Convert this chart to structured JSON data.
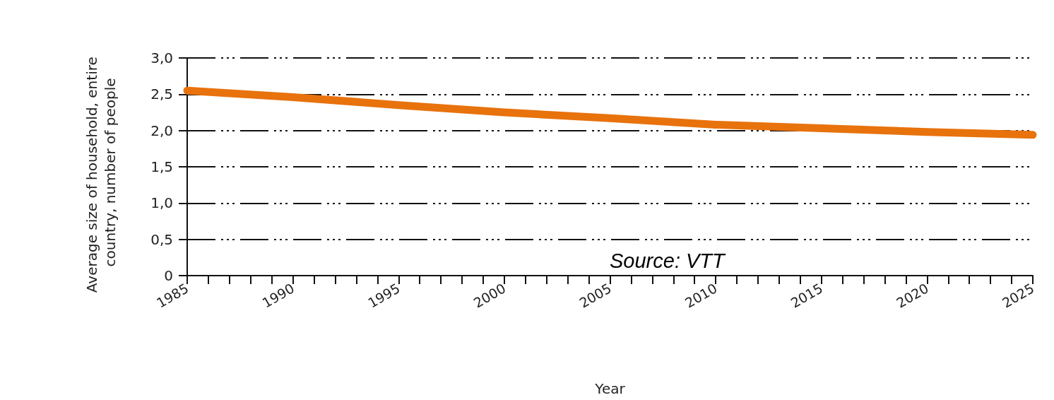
{
  "chart_data": {
    "type": "line",
    "xlabel": "Year",
    "ylabel": "Average size of household, entire country, number of people",
    "annotations": [
      "Source: VTT"
    ],
    "x": [
      1985,
      1990,
      1995,
      2000,
      2005,
      2010,
      2015,
      2020,
      2025
    ],
    "series": [
      {
        "color": "#e8720c",
        "values": [
          2.55,
          2.46,
          2.35,
          2.25,
          2.17,
          2.08,
          2.03,
          1.98,
          1.94
        ]
      }
    ],
    "xlim": [
      1985,
      2025
    ],
    "xticks": [
      1985,
      {
        "value": 1986,
        "label": null
      },
      {
        "value": 1987,
        "label": null
      },
      {
        "value": 1988,
        "label": null
      },
      {
        "value": 1989,
        "label": null
      },
      1990,
      {
        "value": 1991,
        "label": null
      },
      {
        "value": 1992,
        "label": null
      },
      {
        "value": 1993,
        "label": null
      },
      {
        "value": 1994,
        "label": null
      },
      1995,
      {
        "value": 1996,
        "label": null
      },
      {
        "value": 1997,
        "label": null
      },
      {
        "value": 1998,
        "label": null
      },
      {
        "value": 1999,
        "label": null
      },
      2000,
      {
        "value": 2001,
        "label": null
      },
      {
        "value": 2002,
        "label": null
      },
      {
        "value": 2003,
        "label": null
      },
      {
        "value": 2004,
        "label": null
      },
      2005,
      {
        "value": 2006,
        "label": null
      },
      {
        "value": 2007,
        "label": null
      },
      {
        "value": 2008,
        "label": null
      },
      {
        "value": 2009,
        "label": null
      },
      2010,
      {
        "value": 2011,
        "label": null
      },
      {
        "value": 2012,
        "label": null
      },
      {
        "value": 2013,
        "label": null
      },
      {
        "value": 2014,
        "label": null
      },
      2015,
      {
        "value": 2016,
        "label": null
      },
      {
        "value": 2017,
        "label": null
      },
      {
        "value": 2018,
        "label": null
      },
      {
        "value": 2019,
        "label": null
      },
      2020,
      {
        "value": 2021,
        "label": null
      },
      {
        "value": 2022,
        "label": null
      },
      {
        "value": 2023,
        "label": null
      },
      {
        "value": 2024,
        "label": null
      },
      2025
    ],
    "ylim": [
      0,
      3
    ],
    "yticks": [
      0,
      {
        "value": 0.5,
        "label": "0,5"
      },
      {
        "value": 1,
        "label": "1,0"
      },
      {
        "value": 1.5,
        "label": "1,5"
      },
      {
        "value": 2,
        "label": "2,0"
      },
      {
        "value": 2.5,
        "label": "2,5"
      },
      {
        "value": 3,
        "label": "3,0"
      }
    ],
    "grid": "y",
    "line_style": "solid"
  }
}
